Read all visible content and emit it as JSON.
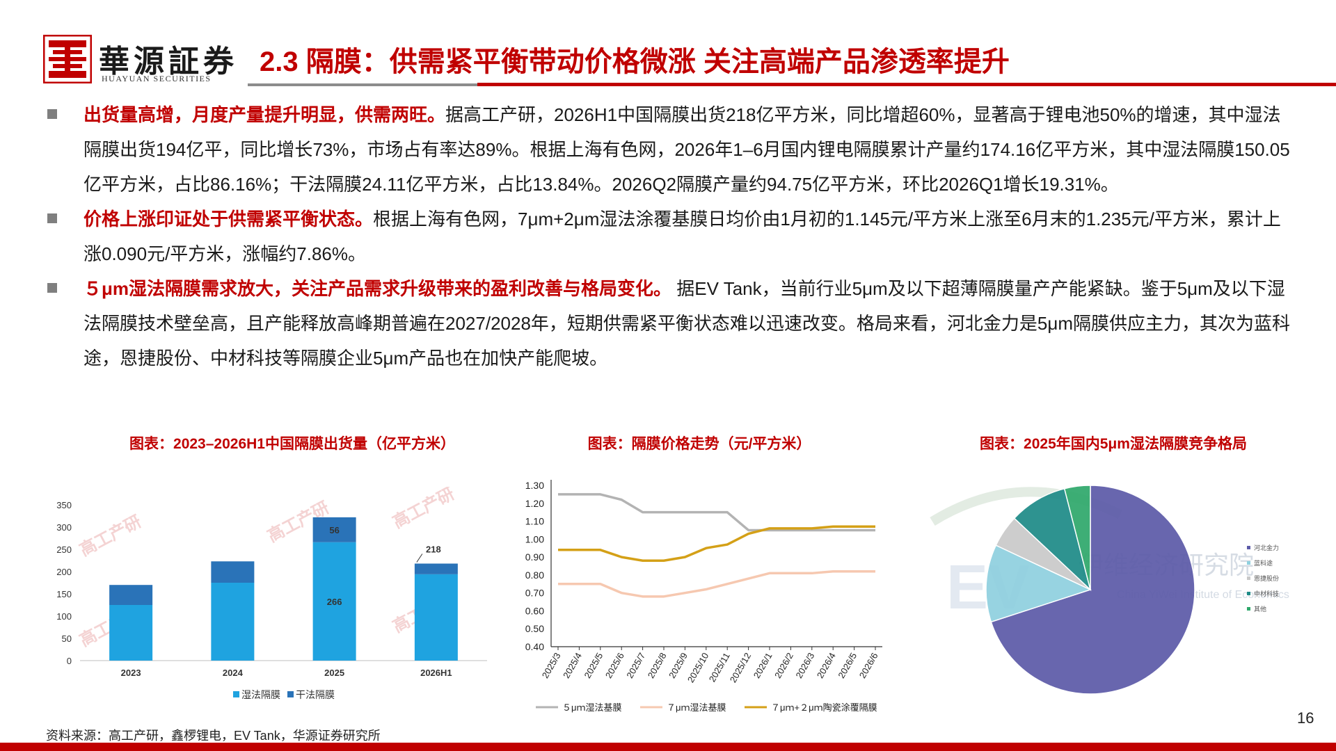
{
  "logo": {
    "name_cn": "華源証券",
    "name_en": "HUAYUAN SECURITIES"
  },
  "title": "2.3 隔膜：供需紧平衡带动价格微涨 关注高端产品渗透率提升",
  "bullets": [
    {
      "highlight": "出货量高增，月度产量提升明显，供需两旺。",
      "text": "据高工产研，2026H1中国隔膜出货218亿平方米，同比增超60%，显著高于锂电池50%的增速，其中湿法隔膜出货194亿平，同比增长73%，市场占有率达89%。根据上海有色网，2026年1–6月国内锂电隔膜累计产量约174.16亿平方米，其中湿法隔膜150.05亿平方米，占比86.16%；干法隔膜24.11亿平方米，占比13.84%。2026Q2隔膜产量约94.75亿平方米，环比2026Q1增长19.31%。"
    },
    {
      "highlight": "价格上涨印证处于供需紧平衡状态。",
      "text": "根据上海有色网，7μm+2μm湿法涂覆基膜日均价由1月初的1.145元/平方米上涨至6月末的1.235元/平方米，累计上涨0.090元/平方米，涨幅约7.86%。"
    },
    {
      "highlight": "５μm湿法隔膜需求放大，关注产品需求升级带来的盈利改善与格局变化。",
      "text": " 据EV Tank，当前行业5μm及以下超薄隔膜量产产能紧缺。鉴于5μm及以下湿法隔膜技术壁垒高，且产能释放高峰期普遍在2027/2028年，短期供需紧平衡状态难以迅速改变。格局来看，河北金力是5μm隔膜供应主力，其次为蓝科途，恩捷股份、中材科技等隔膜企业5μm产品也在加快产能爬坡。"
    }
  ],
  "charts": {
    "shipments_title": "图表：2023–2026H1中国隔膜出货量（亿平方米）",
    "price_title": "图表：隔膜价格走势（元/平方米）",
    "share_title": "图表：2025年国内5μm湿法隔膜竞争格局"
  },
  "chart_data": [
    {
      "type": "bar",
      "title": "图表：2023–2026H1中国隔膜出货量（亿平方米）",
      "categories": [
        "2023",
        "2024",
        "2025",
        "2026H1"
      ],
      "stacked": true,
      "series": [
        {
          "name": "湿法隔膜",
          "values": [
            125,
            175,
            266,
            194
          ],
          "color": "#1fa3e0"
        },
        {
          "name": "干法隔膜",
          "values": [
            45,
            48,
            56,
            24
          ],
          "color": "#2a73b8"
        }
      ],
      "data_labels": [
        {
          "category": "2025",
          "series": "湿法隔膜",
          "text": "266"
        },
        {
          "category": "2025",
          "series": "干法隔膜",
          "text": "56"
        },
        {
          "category": "2026H1",
          "series": "total",
          "text": "218"
        }
      ],
      "yticks": [
        "0",
        "50",
        "100",
        "150",
        "200",
        "250",
        "300",
        "350"
      ],
      "ylim": [
        0,
        350
      ],
      "legend": "bottom",
      "watermark": "高工产研"
    },
    {
      "type": "line",
      "title": "图表：隔膜价格走势（元/平方米）",
      "x": [
        "2025/3",
        "2025/4",
        "2025/5",
        "2025/6",
        "2025/7",
        "2025/8",
        "2025/9",
        "2025/10",
        "2025/11",
        "2025/12",
        "2026/1",
        "2026/2",
        "2026/3",
        "2026/4",
        "2026/5",
        "2026/6"
      ],
      "series": [
        {
          "name": "５μｍ湿法基膜",
          "color": "#b3b3b3",
          "values": [
            1.25,
            1.25,
            1.25,
            1.22,
            1.15,
            1.15,
            1.15,
            1.15,
            1.15,
            1.05,
            1.05,
            1.05,
            1.05,
            1.05,
            1.05,
            1.05
          ]
        },
        {
          "name": "７μｍ湿法基膜",
          "color": "#f6c8b0",
          "values": [
            0.75,
            0.75,
            0.75,
            0.7,
            0.68,
            0.68,
            0.7,
            0.72,
            0.75,
            0.78,
            0.81,
            0.81,
            0.81,
            0.82,
            0.82,
            0.82
          ]
        },
        {
          "name": "７μｍ+２μｍ陶瓷涂覆隔膜",
          "color": "#d4a017",
          "values": [
            0.94,
            0.94,
            0.94,
            0.9,
            0.88,
            0.88,
            0.9,
            0.95,
            0.97,
            1.03,
            1.06,
            1.06,
            1.06,
            1.07,
            1.07,
            1.07
          ]
        }
      ],
      "yticks": [
        "0.40",
        "0.50",
        "0.60",
        "0.70",
        "0.80",
        "0.90",
        "1.00",
        "1.10",
        "1.20",
        "1.30"
      ],
      "ylim": [
        0.4,
        1.3
      ],
      "legend": "bottom"
    },
    {
      "type": "pie",
      "title": "图表：2025年国内5μm湿法隔膜竞争格局",
      "slices": [
        {
          "name": "河北金力",
          "value": 70,
          "color": "#5c5aa8"
        },
        {
          "name": "蓝科途",
          "value": 12,
          "color": "#8fd0df"
        },
        {
          "name": "恩捷股份",
          "value": 5,
          "color": "#c9c9c9"
        },
        {
          "name": "中材科技",
          "value": 9,
          "color": "#1d8a87"
        },
        {
          "name": "其他",
          "value": 4,
          "color": "#2ea86b"
        }
      ],
      "legend": "right",
      "watermark": "伊维经济研究院 China YiWei Institute of Economics"
    }
  ],
  "footer": {
    "source": "资料来源：高工产研，鑫椤锂电，EV Tank，华源证券研究所",
    "page": "16"
  }
}
